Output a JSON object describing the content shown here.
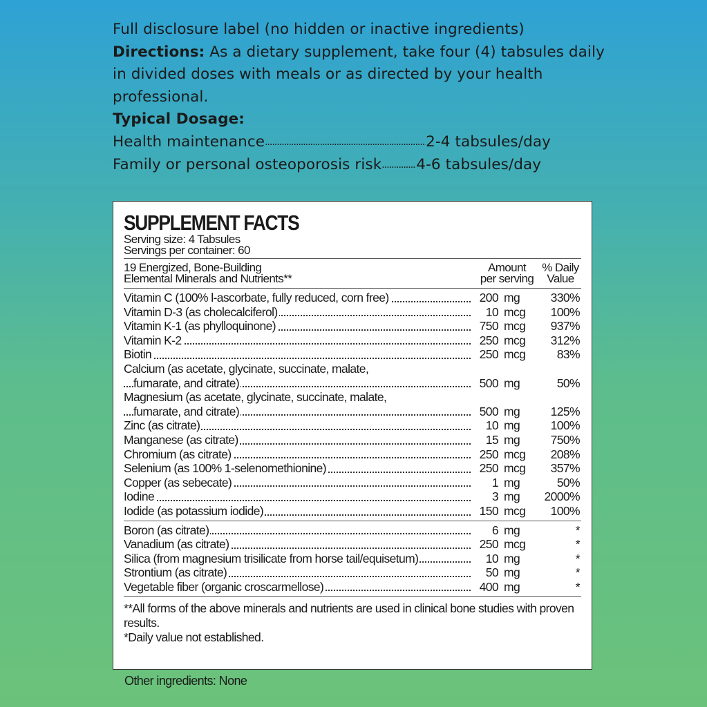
{
  "intro": {
    "disclosure": "Full disclosure label (no hidden or inactive ingredients)",
    "directions_label": "Directions:",
    "directions_text": " As a dietary supplement, take four (4) tabsules daily in divided doses with meals or as directed by your health professional.",
    "typical_dosage_label": "Typical Dosage:",
    "dosages": [
      {
        "name": "Health maintenance",
        "value": "2-4 tabsules/day"
      },
      {
        "name": "Family or personal osteoporosis risk",
        "value": "4-6 tabsules/day"
      }
    ]
  },
  "label": {
    "title": "SUPPLEMENT FACTS",
    "serving_size": "Serving size: 4 Tabsules",
    "servings_per_container": "Servings per container: 60",
    "header_name_line1": "19 Energized, Bone-Building",
    "header_name_line2": "Elemental Minerals and Nutrients**",
    "header_amount_line1": "Amount",
    "header_amount_line2": "per serving",
    "header_dv_line1": "% Daily",
    "header_dv_line2": "Value",
    "rows": [
      {
        "name": "Vitamin C (100% l-ascorbate, fully reduced, corn free)",
        "amount": "200",
        "unit": "mg",
        "dv": "330%"
      },
      {
        "name": "Vitamin D-3 (as cholecalciferol)",
        "amount": "10",
        "unit": "mcg",
        "dv": "100%"
      },
      {
        "name": "Vitamin K-1 (as phylloquinone)",
        "amount": "750",
        "unit": "mcg",
        "dv": "937%"
      },
      {
        "name": "Vitamin K-2",
        "amount": "250",
        "unit": "mcg",
        "dv": "312%"
      },
      {
        "name": "Biotin",
        "amount": "250",
        "unit": "mcg",
        "dv": "83%"
      },
      {
        "name": "Calcium (as acetate, glycinate, succinate, malate,",
        "name2": "fumarate, and citrate)",
        "amount": "500",
        "unit": "mg",
        "dv": "50%"
      },
      {
        "name": "Magnesium (as acetate, glycinate, succinate, malate,",
        "name2": "fumarate, and citrate)",
        "amount": "500",
        "unit": "mg",
        "dv": "125%"
      },
      {
        "name": "Zinc (as citrate)",
        "amount": "10",
        "unit": "mg",
        "dv": "100%"
      },
      {
        "name": "Manganese (as citrate)",
        "amount": "15",
        "unit": "mg",
        "dv": "750%"
      },
      {
        "name": "Chromium (as citrate)",
        "amount": "250",
        "unit": "mcg",
        "dv": "208%"
      },
      {
        "name": "Selenium (as 100% 1-selenomethionine)",
        "amount": "250",
        "unit": "mcg",
        "dv": "357%"
      },
      {
        "name": "Copper (as sebecate)",
        "amount": "1",
        "unit": "mg",
        "dv": "50%"
      },
      {
        "name": "Iodine",
        "amount": "3",
        "unit": "mg",
        "dv": "2000%"
      },
      {
        "name": "Iodide (as potassium iodide)",
        "amount": "150",
        "unit": "mcg",
        "dv": "100%"
      }
    ],
    "rows2": [
      {
        "name": "Boron (as citrate)",
        "amount": "6",
        "unit": "mg",
        "dv": "*"
      },
      {
        "name": "Vanadium (as citrate)",
        "amount": "250",
        "unit": "mcg",
        "dv": "*"
      },
      {
        "name": "Silica (from magnesium trisilicate from horse tail/equisetum)",
        "amount": "10",
        "unit": "mg",
        "dv": "*"
      },
      {
        "name": "Strontium (as citrate)",
        "amount": "50",
        "unit": "mg",
        "dv": "*"
      },
      {
        "name": "Vegetable fiber (organic croscarmellose)",
        "amount": "400",
        "unit": "mg",
        "dv": "*"
      }
    ],
    "footnote1": "**All forms of the above minerals and nutrients are used in clinical bone studies with proven results.",
    "footnote2": "*Daily value not established."
  },
  "other_ingredients": "Other ingredients: None"
}
